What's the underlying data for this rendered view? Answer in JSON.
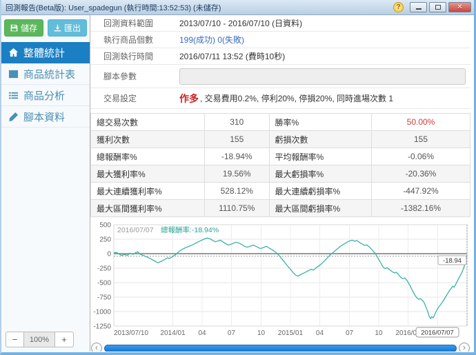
{
  "window": {
    "title": "回測報告(Beta版): User_spadegun (執行時間:13:52:53) (未儲存)"
  },
  "icons": {
    "help": "?",
    "close": "✕",
    "scroll_left": "‹",
    "scroll_right": "›",
    "zoom_out": "−",
    "zoom_in": "+"
  },
  "sidebar": {
    "save_label": "儲存",
    "export_label": "匯出",
    "items": [
      {
        "key": "overall-stats",
        "label": "整體統計",
        "icon": "home-icon",
        "active": true
      },
      {
        "key": "product-stats-table",
        "label": "商品統計表",
        "icon": "table-icon",
        "active": false
      },
      {
        "key": "product-analysis",
        "label": "商品分析",
        "icon": "list-icon",
        "active": false
      },
      {
        "key": "script-data",
        "label": "腳本資料",
        "icon": "pencil-icon",
        "active": false
      }
    ],
    "zoom": {
      "value": "100%"
    }
  },
  "info": {
    "rows": [
      {
        "key": "data-range",
        "type": "text",
        "label": "回測資料範圍",
        "value": "2013/07/10 - 2016/07/10 (日資料)"
      },
      {
        "key": "product-count",
        "type": "link",
        "label": "執行商品個數",
        "value": "199(成功) 0(失敗)"
      },
      {
        "key": "run-time",
        "type": "text",
        "label": "回測執行時間",
        "value": "2016/07/11 13:52 (費時10秒)"
      },
      {
        "key": "script-params",
        "type": "input",
        "label": "腳本參數",
        "value": ""
      },
      {
        "key": "trade-settings",
        "type": "trade",
        "label": "交易設定",
        "em": "作多",
        "value": ", 交易費用0.2%, 停利20%, 停損20%, 同時進場次數 1"
      }
    ]
  },
  "stats_table": {
    "rows": [
      {
        "l1": "總交易次數",
        "v1": "310",
        "l2": "勝率%",
        "v2": "50.00%",
        "v2red": true
      },
      {
        "l1": "獲利次數",
        "v1": "155",
        "l2": "虧損次數",
        "v2": "155",
        "v2red": false
      },
      {
        "l1": "總報酬率%",
        "v1": "-18.94%",
        "l2": "平均報酬率%",
        "v2": "-0.06%",
        "v2red": false
      },
      {
        "l1": "最大獲利率%",
        "v1": "19.56%",
        "l2": "最大虧損率%",
        "v2": "-20.36%",
        "v2red": false
      },
      {
        "l1": "最大連續獲利率%",
        "v1": "528.12%",
        "l2": "最大連續虧損率%",
        "v2": "-447.92%",
        "v2red": false
      },
      {
        "l1": "最大區間獲利率%",
        "v1": "1110.75%",
        "l2": "最大區間虧損率%",
        "v2": "-1382.16%",
        "v2red": false
      }
    ]
  },
  "chart_data": {
    "type": "line",
    "hover_date": "2016/07/07",
    "series_label": "總報酬率:-18.94%",
    "end_value_label": "-18.94",
    "end_date_label": "2016/07/07",
    "line_color": "#3bb3a2",
    "ylim": [
      -1250,
      500
    ],
    "yticks": [
      500,
      250,
      0,
      -250,
      -500,
      -750,
      -1000,
      -1250
    ],
    "xticks": [
      {
        "label": "2013/07/10",
        "pos": 0.0
      },
      {
        "label": "2014/01",
        "pos": 0.167
      },
      {
        "label": "04",
        "pos": 0.25
      },
      {
        "label": "07",
        "pos": 0.333
      },
      {
        "label": "10",
        "pos": 0.417
      },
      {
        "label": "2015/01",
        "pos": 0.5
      },
      {
        "label": "04",
        "pos": 0.583
      },
      {
        "label": "07",
        "pos": 0.667
      },
      {
        "label": "10",
        "pos": 0.75
      },
      {
        "label": "2016/01",
        "pos": 0.833
      },
      {
        "label": "04",
        "pos": 0.917
      }
    ],
    "points": [
      [
        0,
        18
      ],
      [
        0.008,
        22
      ],
      [
        0.015,
        -8
      ],
      [
        0.022,
        -30
      ],
      [
        0.03,
        -15
      ],
      [
        0.038,
        -28
      ],
      [
        0.046,
        8
      ],
      [
        0.054,
        -12
      ],
      [
        0.062,
        18
      ],
      [
        0.068,
        32
      ],
      [
        0.075,
        -12
      ],
      [
        0.085,
        -35
      ],
      [
        0.095,
        -60
      ],
      [
        0.105,
        -90
      ],
      [
        0.115,
        -125
      ],
      [
        0.125,
        -158
      ],
      [
        0.135,
        -130
      ],
      [
        0.145,
        -98
      ],
      [
        0.152,
        -72
      ],
      [
        0.158,
        -82
      ],
      [
        0.165,
        -55
      ],
      [
        0.175,
        -15
      ],
      [
        0.185,
        42
      ],
      [
        0.195,
        80
      ],
      [
        0.205,
        108
      ],
      [
        0.215,
        132
      ],
      [
        0.225,
        158
      ],
      [
        0.235,
        192
      ],
      [
        0.245,
        222
      ],
      [
        0.255,
        250
      ],
      [
        0.265,
        272
      ],
      [
        0.272,
        258
      ],
      [
        0.28,
        228
      ],
      [
        0.288,
        205
      ],
      [
        0.295,
        222
      ],
      [
        0.302,
        232
      ],
      [
        0.31,
        200
      ],
      [
        0.318,
        168
      ],
      [
        0.325,
        148
      ],
      [
        0.335,
        172
      ],
      [
        0.345,
        198
      ],
      [
        0.355,
        182
      ],
      [
        0.362,
        158
      ],
      [
        0.37,
        128
      ],
      [
        0.378,
        112
      ],
      [
        0.388,
        132
      ],
      [
        0.395,
        148
      ],
      [
        0.405,
        118
      ],
      [
        0.415,
        88
      ],
      [
        0.425,
        108
      ],
      [
        0.432,
        128
      ],
      [
        0.44,
        95
      ],
      [
        0.45,
        62
      ],
      [
        0.46,
        18
      ],
      [
        0.47,
        -45
      ],
      [
        0.48,
        -122
      ],
      [
        0.49,
        -200
      ],
      [
        0.5,
        -268
      ],
      [
        0.508,
        -330
      ],
      [
        0.515,
        -372
      ],
      [
        0.522,
        -388
      ],
      [
        0.53,
        -358
      ],
      [
        0.54,
        -328
      ],
      [
        0.55,
        -298
      ],
      [
        0.558,
        -272
      ],
      [
        0.565,
        -285
      ],
      [
        0.572,
        -248
      ],
      [
        0.582,
        -205
      ],
      [
        0.592,
        -152
      ],
      [
        0.602,
        -88
      ],
      [
        0.612,
        -25
      ],
      [
        0.622,
        28
      ],
      [
        0.632,
        78
      ],
      [
        0.642,
        128
      ],
      [
        0.652,
        168
      ],
      [
        0.66,
        198
      ],
      [
        0.668,
        222
      ],
      [
        0.675,
        232
      ],
      [
        0.682,
        215
      ],
      [
        0.688,
        225
      ],
      [
        0.695,
        198
      ],
      [
        0.702,
        172
      ],
      [
        0.71,
        142
      ],
      [
        0.716,
        152
      ],
      [
        0.724,
        112
      ],
      [
        0.732,
        62
      ],
      [
        0.74,
        2
      ],
      [
        0.748,
        -78
      ],
      [
        0.756,
        -162
      ],
      [
        0.762,
        -228
      ],
      [
        0.768,
        -258
      ],
      [
        0.774,
        -242
      ],
      [
        0.78,
        -272
      ],
      [
        0.788,
        -312
      ],
      [
        0.795,
        -332
      ],
      [
        0.8,
        -322
      ],
      [
        0.806,
        -362
      ],
      [
        0.812,
        -405
      ],
      [
        0.818,
        -432
      ],
      [
        0.824,
        -418
      ],
      [
        0.83,
        -462
      ],
      [
        0.838,
        -545
      ],
      [
        0.846,
        -645
      ],
      [
        0.853,
        -722
      ],
      [
        0.858,
        -762
      ],
      [
        0.863,
        -788
      ],
      [
        0.868,
        -775
      ],
      [
        0.873,
        -802
      ],
      [
        0.878,
        -838
      ],
      [
        0.884,
        -925
      ],
      [
        0.889,
        -1005
      ],
      [
        0.893,
        -1082
      ],
      [
        0.897,
        -1122
      ],
      [
        0.9,
        -1088
      ],
      [
        0.904,
        -1108
      ],
      [
        0.908,
        -1058
      ],
      [
        0.913,
        -988
      ],
      [
        0.918,
        -938
      ],
      [
        0.924,
        -888
      ],
      [
        0.93,
        -838
      ],
      [
        0.935,
        -792
      ],
      [
        0.94,
        -738
      ],
      [
        0.945,
        -692
      ],
      [
        0.95,
        -642
      ],
      [
        0.955,
        -598
      ],
      [
        0.96,
        -562
      ],
      [
        0.963,
        -578
      ],
      [
        0.967,
        -542
      ],
      [
        0.971,
        -492
      ],
      [
        0.975,
        -445
      ],
      [
        0.979,
        -398
      ],
      [
        0.982,
        -362
      ],
      [
        0.985,
        -332
      ],
      [
        0.988,
        -285
      ],
      [
        0.991,
        -238
      ],
      [
        0.994,
        -185
      ],
      [
        0.997,
        -105
      ],
      [
        1,
        -18.94
      ]
    ]
  }
}
